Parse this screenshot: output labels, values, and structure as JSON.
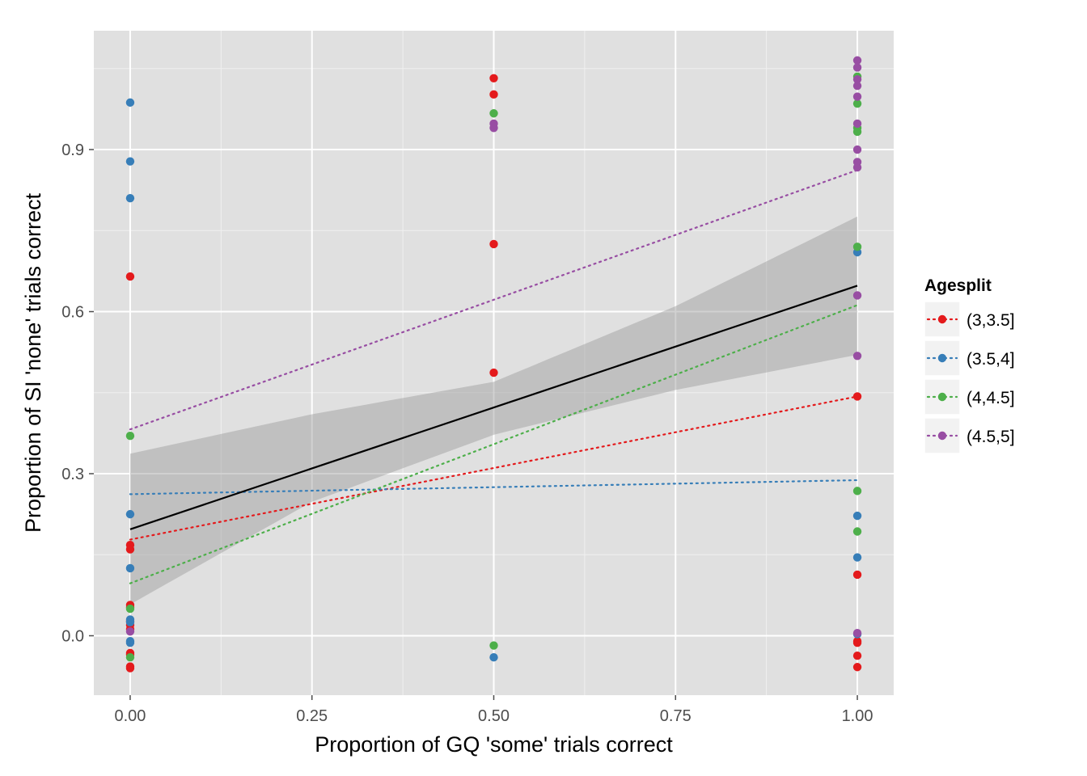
{
  "chart_data": {
    "type": "scatter",
    "xlabel": "Proportion of GQ 'some' trials correct",
    "ylabel": "Proportion of SI 'none' trials correct",
    "xlim": [
      -0.05,
      1.05
    ],
    "ylim": [
      -0.11,
      1.12
    ],
    "x_ticks": [
      "0.00",
      "0.25",
      "0.50",
      "0.75",
      "1.00"
    ],
    "x_tick_values": [
      0,
      0.25,
      0.5,
      0.75,
      1
    ],
    "y_ticks": [
      "0.0",
      "0.3",
      "0.6",
      "0.9"
    ],
    "y_tick_values": [
      0,
      0.3,
      0.6,
      0.9
    ],
    "grid": true,
    "background": "#e0e0e0",
    "legend": {
      "title": "Agesplit",
      "placement": "right"
    },
    "series": [
      {
        "name": "(3,3.5]",
        "color": "#e41a1c",
        "points": [
          [
            0,
            0.665
          ],
          [
            0,
            0.168
          ],
          [
            0,
            0.16
          ],
          [
            0,
            0.057
          ],
          [
            0,
            0.053
          ],
          [
            0,
            0.027
          ],
          [
            0,
            0.02
          ],
          [
            0,
            0.012
          ],
          [
            0,
            -0.032
          ],
          [
            0,
            -0.035
          ],
          [
            0,
            -0.057
          ],
          [
            0,
            -0.06
          ],
          [
            0.5,
            1.032
          ],
          [
            0.5,
            1.002
          ],
          [
            0.5,
            0.725
          ],
          [
            0.5,
            0.487
          ],
          [
            1,
            0.443
          ],
          [
            1,
            0.113
          ],
          [
            1,
            -0.01
          ],
          [
            1,
            -0.013
          ],
          [
            1,
            -0.037
          ],
          [
            1,
            -0.058
          ]
        ],
        "fit": [
          [
            0,
            0.178
          ],
          [
            1,
            0.443
          ]
        ]
      },
      {
        "name": "(3.5,4]",
        "color": "#377eb8",
        "points": [
          [
            0,
            0.987
          ],
          [
            0,
            0.878
          ],
          [
            0,
            0.81
          ],
          [
            0,
            0.225
          ],
          [
            0,
            0.125
          ],
          [
            0,
            0.03
          ],
          [
            0,
            0.025
          ],
          [
            0,
            -0.01
          ],
          [
            0,
            -0.013
          ],
          [
            0.5,
            -0.04
          ],
          [
            1,
            0.71
          ],
          [
            1,
            0.222
          ],
          [
            1,
            0.145
          ],
          [
            1,
            0.003
          ]
        ],
        "fit": [
          [
            0,
            0.262
          ],
          [
            1,
            0.288
          ]
        ]
      },
      {
        "name": "(4,4.5]",
        "color": "#4daf4a",
        "points": [
          [
            0,
            0.37
          ],
          [
            0,
            0.05
          ],
          [
            0,
            -0.04
          ],
          [
            0.5,
            0.967
          ],
          [
            0.5,
            -0.018
          ],
          [
            1,
            1.035
          ],
          [
            1,
            0.985
          ],
          [
            1,
            0.94
          ],
          [
            1,
            0.933
          ],
          [
            1,
            0.72
          ],
          [
            1,
            0.268
          ],
          [
            1,
            0.193
          ]
        ],
        "fit": [
          [
            0,
            0.097
          ],
          [
            1,
            0.612
          ]
        ]
      },
      {
        "name": "(4.5,5]",
        "color": "#984ea3",
        "points": [
          [
            0,
            0.008
          ],
          [
            0.5,
            0.948
          ],
          [
            0.5,
            0.94
          ],
          [
            1,
            1.065
          ],
          [
            1,
            1.052
          ],
          [
            1,
            1.03
          ],
          [
            1,
            1.018
          ],
          [
            1,
            0.998
          ],
          [
            1,
            0.948
          ],
          [
            1,
            0.9
          ],
          [
            1,
            0.877
          ],
          [
            1,
            0.867
          ],
          [
            1,
            0.63
          ],
          [
            1,
            0.518
          ],
          [
            1,
            0.005
          ]
        ],
        "fit": [
          [
            0,
            0.382
          ],
          [
            1,
            0.862
          ]
        ]
      }
    ],
    "overall_fit": {
      "color": "#000000",
      "line": [
        [
          0,
          0.197
        ],
        [
          1,
          0.648
        ]
      ],
      "band_x": [
        0,
        0.25,
        0.5,
        0.75,
        1
      ],
      "band_lower": [
        0.058,
        0.248,
        0.372,
        0.455,
        0.52
      ],
      "band_upper": [
        0.337,
        0.41,
        0.47,
        0.61,
        0.776
      ],
      "band_color": "#999999"
    }
  }
}
